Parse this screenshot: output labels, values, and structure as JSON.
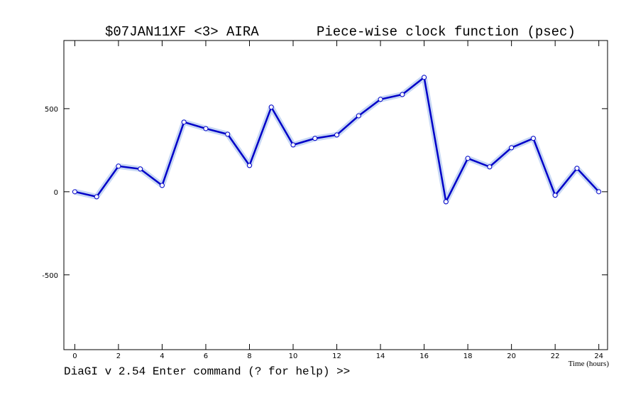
{
  "chart_data": {
    "type": "line",
    "title": "$07JAN11XF <3>  AIRA",
    "subtitle": "Piece-wise clock function (psec)",
    "x_label": "Time (hours)",
    "x": [
      0,
      1,
      2,
      3,
      4,
      5,
      6,
      7,
      8,
      9,
      10,
      11,
      12,
      13,
      14,
      15,
      16,
      17,
      18,
      19,
      20,
      21,
      22,
      23,
      24
    ],
    "series": [
      {
        "name": "clock function",
        "color": "#0000c8",
        "values": [
          0,
          -30,
          154,
          137,
          38,
          419,
          380,
          346,
          158,
          509,
          282,
          321,
          342,
          457,
          556,
          585,
          688,
          -60,
          201,
          150,
          265,
          321,
          -21,
          141,
          0
        ]
      }
    ],
    "xlim": [
      -0.5,
      24.4
    ],
    "ylim": [
      -950,
      910
    ],
    "xticks": [
      0,
      2,
      4,
      6,
      8,
      10,
      12,
      14,
      16,
      18,
      20,
      22,
      24
    ],
    "yticks": [
      -500,
      0,
      500
    ]
  },
  "prompt": "DiaGI v 2.54  Enter command (? for help) >>"
}
